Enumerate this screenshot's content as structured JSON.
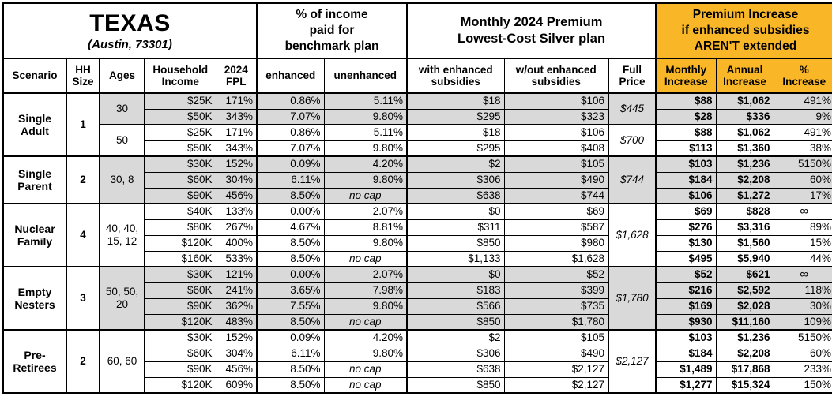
{
  "colors": {
    "highlight": "#F9B728",
    "shade": "#D9D9D9",
    "border": "#000000"
  },
  "chart_data": {
    "type": "table",
    "title": "TEXAS",
    "subtitle": "(Austin, 73301)",
    "section_income": "% of income\npaid for\nbenchmark plan",
    "section_premium": "Monthly 2024 Premium\nLowest-Cost Silver plan",
    "section_increase": "Premium Increase\nif enhanced subsidies\nAREN'T extended",
    "columns": [
      "Scenario",
      "HH\nSize",
      "Ages",
      "Household\nIncome",
      "2024\nFPL",
      "enhanced",
      "unenhanced",
      "with enhanced\nsubsidies",
      "w/out enhanced\nsubsidies",
      "Full\nPrice",
      "Monthly\nIncrease",
      "Annual\nIncrease",
      "%\nIncrease"
    ],
    "scenarios": [
      {
        "name": "Single\nAdult",
        "hh_size": "1",
        "subgroups": [
          {
            "ages": "30",
            "shaded": true,
            "full_price": "$445",
            "rows": [
              {
                "income": "$25K",
                "fpl": "171%",
                "enhanced": "0.86%",
                "unenhanced": "5.11%",
                "with_sub": "$18",
                "wout_sub": "$106",
                "monthly": "$88",
                "annual": "$1,062",
                "pct": "491%"
              },
              {
                "income": "$50K",
                "fpl": "343%",
                "enhanced": "7.07%",
                "unenhanced": "9.80%",
                "with_sub": "$295",
                "wout_sub": "$323",
                "monthly": "$28",
                "annual": "$336",
                "pct": "9%"
              }
            ]
          },
          {
            "ages": "50",
            "shaded": false,
            "full_price": "$700",
            "rows": [
              {
                "income": "$25K",
                "fpl": "171%",
                "enhanced": "0.86%",
                "unenhanced": "5.11%",
                "with_sub": "$18",
                "wout_sub": "$106",
                "monthly": "$88",
                "annual": "$1,062",
                "pct": "491%"
              },
              {
                "income": "$50K",
                "fpl": "343%",
                "enhanced": "7.07%",
                "unenhanced": "9.80%",
                "with_sub": "$295",
                "wout_sub": "$408",
                "monthly": "$113",
                "annual": "$1,360",
                "pct": "38%"
              }
            ]
          }
        ]
      },
      {
        "name": "Single\nParent",
        "hh_size": "2",
        "subgroups": [
          {
            "ages": "30, 8",
            "shaded": true,
            "full_price": "$744",
            "rows": [
              {
                "income": "$30K",
                "fpl": "152%",
                "enhanced": "0.09%",
                "unenhanced": "4.20%",
                "with_sub": "$2",
                "wout_sub": "$105",
                "monthly": "$103",
                "annual": "$1,236",
                "pct": "5150%"
              },
              {
                "income": "$60K",
                "fpl": "304%",
                "enhanced": "6.11%",
                "unenhanced": "9.80%",
                "with_sub": "$306",
                "wout_sub": "$490",
                "monthly": "$184",
                "annual": "$2,208",
                "pct": "60%"
              },
              {
                "income": "$90K",
                "fpl": "456%",
                "enhanced": "8.50%",
                "unenhanced": "no cap",
                "with_sub": "$638",
                "wout_sub": "$744",
                "monthly": "$106",
                "annual": "$1,272",
                "pct": "17%"
              }
            ]
          }
        ]
      },
      {
        "name": "Nuclear\nFamily",
        "hh_size": "4",
        "subgroups": [
          {
            "ages": "40, 40, 15, 12",
            "shaded": false,
            "full_price": "$1,628",
            "rows": [
              {
                "income": "$40K",
                "fpl": "133%",
                "enhanced": "0.00%",
                "unenhanced": "2.07%",
                "with_sub": "$0",
                "wout_sub": "$69",
                "monthly": "$69",
                "annual": "$828",
                "pct": "∞"
              },
              {
                "income": "$80K",
                "fpl": "267%",
                "enhanced": "4.67%",
                "unenhanced": "8.81%",
                "with_sub": "$311",
                "wout_sub": "$587",
                "monthly": "$276",
                "annual": "$3,316",
                "pct": "89%"
              },
              {
                "income": "$120K",
                "fpl": "400%",
                "enhanced": "8.50%",
                "unenhanced": "9.80%",
                "with_sub": "$850",
                "wout_sub": "$980",
                "monthly": "$130",
                "annual": "$1,560",
                "pct": "15%"
              },
              {
                "income": "$160K",
                "fpl": "533%",
                "enhanced": "8.50%",
                "unenhanced": "no cap",
                "with_sub": "$1,133",
                "wout_sub": "$1,628",
                "monthly": "$495",
                "annual": "$5,940",
                "pct": "44%"
              }
            ]
          }
        ]
      },
      {
        "name": "Empty\nNesters",
        "hh_size": "3",
        "subgroups": [
          {
            "ages": "50, 50, 20",
            "shaded": true,
            "full_price": "$1,780",
            "rows": [
              {
                "income": "$30K",
                "fpl": "121%",
                "enhanced": "0.00%",
                "unenhanced": "2.07%",
                "with_sub": "$0",
                "wout_sub": "$52",
                "monthly": "$52",
                "annual": "$621",
                "pct": "∞"
              },
              {
                "income": "$60K",
                "fpl": "241%",
                "enhanced": "3.65%",
                "unenhanced": "7.98%",
                "with_sub": "$183",
                "wout_sub": "$399",
                "monthly": "$216",
                "annual": "$2,592",
                "pct": "118%"
              },
              {
                "income": "$90K",
                "fpl": "362%",
                "enhanced": "7.55%",
                "unenhanced": "9.80%",
                "with_sub": "$566",
                "wout_sub": "$735",
                "monthly": "$169",
                "annual": "$2,028",
                "pct": "30%"
              },
              {
                "income": "$120K",
                "fpl": "483%",
                "enhanced": "8.50%",
                "unenhanced": "no cap",
                "with_sub": "$850",
                "wout_sub": "$1,780",
                "monthly": "$930",
                "annual": "$11,160",
                "pct": "109%"
              }
            ]
          }
        ]
      },
      {
        "name": "Pre-\nRetirees",
        "hh_size": "2",
        "subgroups": [
          {
            "ages": "60, 60",
            "shaded": false,
            "full_price": "$2,127",
            "rows": [
              {
                "income": "$30K",
                "fpl": "152%",
                "enhanced": "0.09%",
                "unenhanced": "4.20%",
                "with_sub": "$2",
                "wout_sub": "$105",
                "monthly": "$103",
                "annual": "$1,236",
                "pct": "5150%"
              },
              {
                "income": "$60K",
                "fpl": "304%",
                "enhanced": "6.11%",
                "unenhanced": "9.80%",
                "with_sub": "$306",
                "wout_sub": "$490",
                "monthly": "$184",
                "annual": "$2,208",
                "pct": "60%"
              },
              {
                "income": "$90K",
                "fpl": "456%",
                "enhanced": "8.50%",
                "unenhanced": "no cap",
                "with_sub": "$638",
                "wout_sub": "$2,127",
                "monthly": "$1,489",
                "annual": "$17,868",
                "pct": "233%"
              },
              {
                "income": "$120K",
                "fpl": "609%",
                "enhanced": "8.50%",
                "unenhanced": "no cap",
                "with_sub": "$850",
                "wout_sub": "$2,127",
                "monthly": "$1,277",
                "annual": "$15,324",
                "pct": "150%"
              }
            ]
          }
        ]
      }
    ]
  }
}
